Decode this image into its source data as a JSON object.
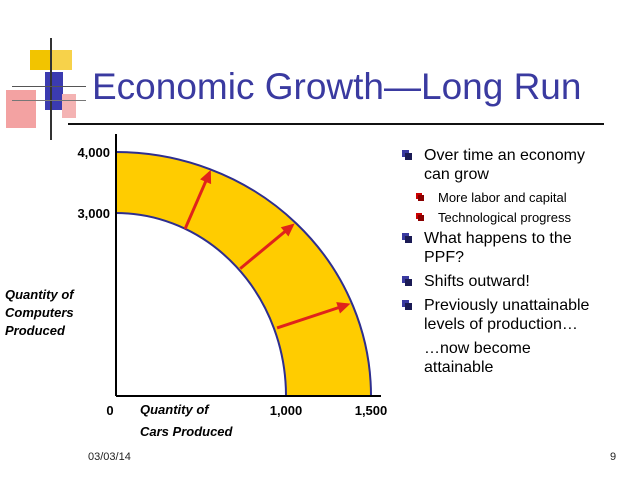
{
  "slide": {
    "title": "Economic Growth—Long Run",
    "date": "03/03/14",
    "page": "9"
  },
  "bullets": [
    {
      "level": 1,
      "text": "Over time an economy can grow",
      "lines": [
        "Over time an economy",
        "can grow"
      ]
    },
    {
      "level": 2,
      "text": "More labor and capital",
      "lines": [
        "More labor and capital"
      ]
    },
    {
      "level": 2,
      "text": "Technological progress",
      "lines": [
        "Technological progress"
      ]
    },
    {
      "level": 1,
      "text": "What happens to the PPF?",
      "lines": [
        "What happens to the",
        "PPF?"
      ]
    },
    {
      "level": 1,
      "text": "Shifts outward!",
      "lines": [
        "Shifts outward!"
      ]
    },
    {
      "level": 1,
      "text": "Previously unattainable levels of production…",
      "lines": [
        "Previously unattainable",
        "levels of production…"
      ]
    },
    {
      "level": 0,
      "text": "…now become attainable",
      "lines": [
        "…now become",
        "attainable"
      ]
    }
  ],
  "colors": {
    "title": "#3a3aa0",
    "band": "#ffcc00",
    "curve": "#2e2e8f",
    "arrow": "#e0231b",
    "axis": "#000000"
  },
  "chart_data": {
    "type": "area",
    "x_label_lines": [
      "Quantity of",
      "Cars Produced"
    ],
    "y_label_lines": [
      "Quantity of",
      "Computers",
      "Produced"
    ],
    "origin_label": "0",
    "x_ticks": [
      {
        "value": 1000,
        "label": "1,000"
      },
      {
        "value": 1500,
        "label": "1,500"
      }
    ],
    "y_ticks": [
      {
        "value": 3000,
        "label": "3,000"
      },
      {
        "value": 4000,
        "label": "4,000"
      }
    ],
    "series": [
      {
        "name": "",
        "x_intercept": 1000,
        "y_intercept": 3000
      },
      {
        "name": "",
        "x_intercept": 1500,
        "y_intercept": 4000
      }
    ],
    "shift_arrows": 3,
    "shaded_between_curves": true
  }
}
